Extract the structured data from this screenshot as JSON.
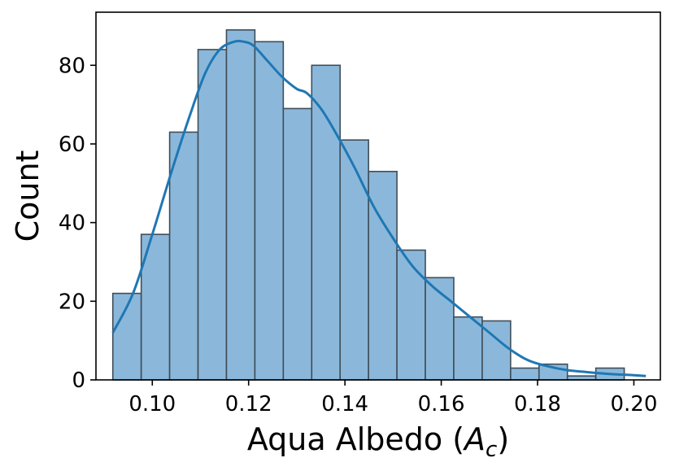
{
  "chart_data": {
    "type": "bar",
    "subtype": "histogram",
    "xlabel": "Aqua Albedo (",
    "xlabel_symbol": "A",
    "xlabel_subscript": "c",
    "xlabel_close": ")",
    "ylabel": "Count",
    "xlim": [
      0.0883,
      0.2055
    ],
    "ylim": [
      0,
      93.5
    ],
    "xticks": [
      0.1,
      0.12,
      0.14,
      0.16,
      0.18,
      0.2
    ],
    "xtick_labels": [
      "0.10",
      "0.12",
      "0.14",
      "0.16",
      "0.18",
      "0.20"
    ],
    "yticks": [
      0,
      20,
      40,
      60,
      80
    ],
    "ytick_labels": [
      "0",
      "20",
      "40",
      "60",
      "80"
    ],
    "grid": false,
    "bins": {
      "start": 0.0918,
      "width": 0.0059,
      "counts": [
        22,
        37,
        63,
        84,
        89,
        86,
        69,
        80,
        61,
        53,
        33,
        26,
        16,
        15,
        3,
        4,
        1,
        3,
        0
      ]
    },
    "kde": {
      "x": [
        0.0918,
        0.096,
        0.1,
        0.104,
        0.108,
        0.111,
        0.114,
        0.117,
        0.119,
        0.121,
        0.124,
        0.127,
        0.13,
        0.132,
        0.135,
        0.138,
        0.142,
        0.146,
        0.15,
        0.154,
        0.158,
        0.162,
        0.166,
        0.17,
        0.174,
        0.178,
        0.182,
        0.186,
        0.19,
        0.195,
        0.2,
        0.2025
      ],
      "y": [
        12,
        22,
        37,
        53,
        68,
        78,
        84,
        86,
        86,
        85,
        81,
        77,
        74,
        73,
        69,
        63,
        54,
        44,
        36,
        29,
        24,
        20,
        16,
        12,
        8,
        5,
        3.5,
        2.5,
        2,
        1.5,
        1.2,
        1.0
      ]
    },
    "colors": {
      "bar_fill": "#8bb8da",
      "bar_edge": "#3f4d59",
      "kde_line": "#1f77b4"
    }
  }
}
